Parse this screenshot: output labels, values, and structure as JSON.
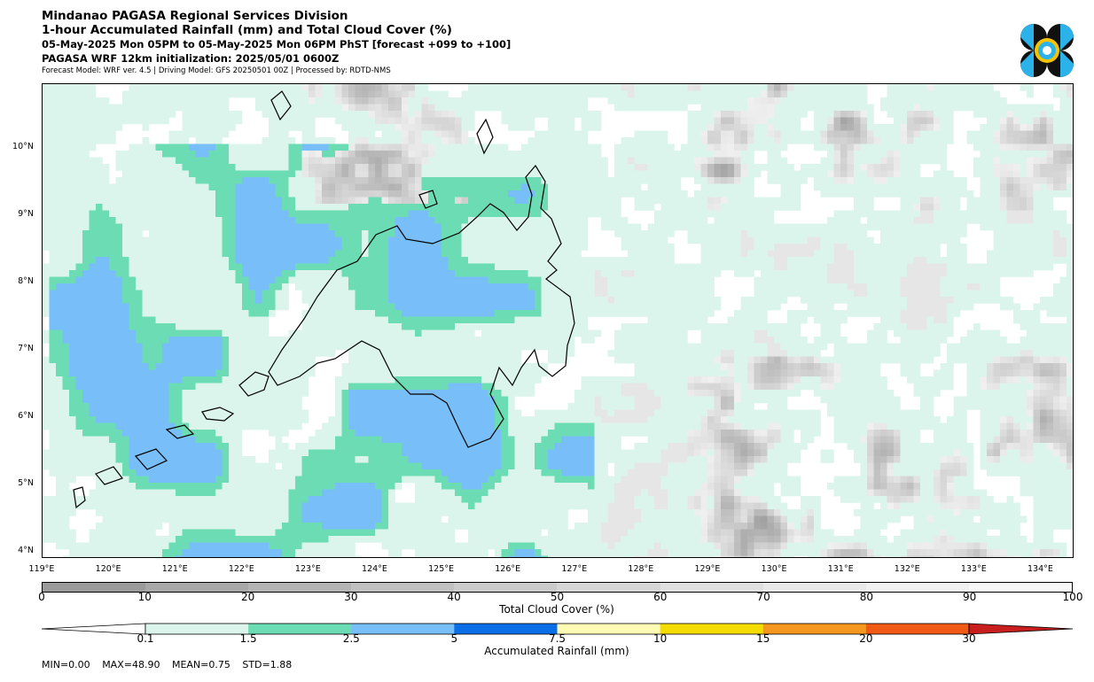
{
  "header": {
    "line1": "Mindanao PAGASA Regional Services Division",
    "line2": "1-hour Accumulated Rainfall (mm) and Total Cloud Cover (%)",
    "line3": "05-May-2025 Mon 05PM to 05-May-2025 Mon 06PM PhST [forecast +099 to +100]",
    "line4": "PAGASA WRF 12km initialization: 2025/05/01 0600Z",
    "line5": "Forecast Model: WRF ver. 4.5 | Driving Model: GFS 20250501 00Z | Processed by: RDTD-NMS"
  },
  "map": {
    "lat_labels": [
      "10°N",
      "9°N",
      "8°N",
      "7°N",
      "6°N",
      "5°N",
      "4°N"
    ],
    "lon_labels": [
      "119°E",
      "120°E",
      "121°E",
      "122°E",
      "123°E",
      "124°E",
      "125°E",
      "126°E",
      "127°E",
      "128°E",
      "129°E",
      "130°E",
      "131°E",
      "132°E",
      "133°E",
      "134°E"
    ],
    "lat_values": [
      10,
      9,
      8,
      7,
      6,
      5,
      4
    ],
    "lon_values": [
      119,
      120,
      121,
      122,
      123,
      124,
      125,
      126,
      127,
      128,
      129,
      130,
      131,
      132,
      133,
      134
    ],
    "extent": {
      "lon_min": 119,
      "lon_max": 134.5,
      "lat_min": 3.9,
      "lat_max": 10.95
    }
  },
  "cloud_colorbar": {
    "label": "Total Cloud Cover (%)",
    "ticks": [
      "0",
      "10",
      "20",
      "30",
      "40",
      "50",
      "60",
      "70",
      "80",
      "90",
      "100"
    ],
    "colors": [
      "#9b9b9b",
      "#a8a8a8",
      "#b4b4b4",
      "#c0c0c0",
      "#cbcbcb",
      "#d6d6d6",
      "#e0e0e0",
      "#e9e9e9",
      "#f1f1f1",
      "#f8f8f8"
    ]
  },
  "rain_colorbar": {
    "label": "Accumulated Rainfall (mm)",
    "ticks": [
      "0.1",
      "1.5",
      "2.5",
      "5",
      "7.5",
      "10",
      "15",
      "20",
      "30"
    ],
    "colors": [
      "#ffffff",
      "#dcf5ec",
      "#6cdcb4",
      "#78bef8",
      "#0a6ee6",
      "#fffab4",
      "#f5dc00",
      "#f5961e",
      "#f05a14",
      "#c81e1e"
    ]
  },
  "stats": {
    "min": "MIN=0.00",
    "max": "MAX=48.90",
    "mean": "MEAN=0.75",
    "std": "STD=1.88"
  }
}
